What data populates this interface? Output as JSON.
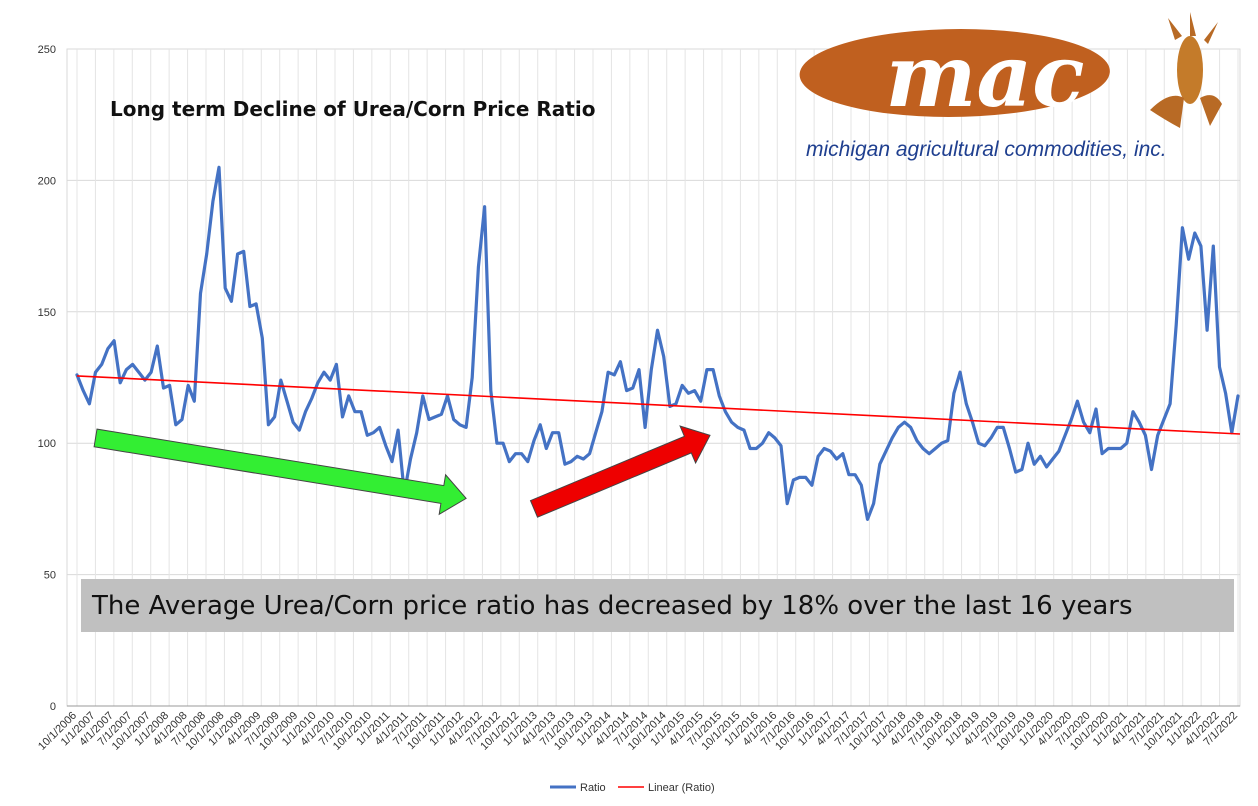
{
  "chart_data": {
    "type": "line",
    "title": "Long term Decline of Urea/Corn Price Ratio",
    "note": "The Average Urea/Corn price ratio has decreased by 18% over the last 16 years",
    "logo": {
      "word": "mac",
      "subtitle": "michigan agricultural commodities, inc."
    },
    "ylim": [
      0,
      250
    ],
    "yticks": [
      0,
      50,
      100,
      150,
      200,
      250
    ],
    "grid": true,
    "legend_position": "bottom",
    "legend": [
      "Ratio",
      "Linear (Ratio)"
    ],
    "x_tick_labels": [
      "10/1/2006",
      "1/1/2007",
      "4/1/2007",
      "7/1/2007",
      "10/1/2007",
      "1/1/2008",
      "4/1/2008",
      "7/1/2008",
      "10/1/2008",
      "1/1/2009",
      "4/1/2009",
      "7/1/2009",
      "10/1/2009",
      "1/1/2010",
      "4/1/2010",
      "7/1/2010",
      "10/1/2010",
      "1/1/2011",
      "4/1/2011",
      "7/1/2011",
      "10/1/2011",
      "1/1/2012",
      "4/1/2012",
      "7/1/2012",
      "10/1/2012",
      "1/1/2013",
      "4/1/2013",
      "7/1/2013",
      "10/1/2013",
      "1/1/2014",
      "4/1/2014",
      "7/1/2014",
      "10/1/2014",
      "1/1/2015",
      "4/1/2015",
      "7/1/2015",
      "10/1/2015",
      "1/1/2016",
      "4/1/2016",
      "7/1/2016",
      "10/1/2016",
      "1/1/2017",
      "4/1/2017",
      "7/1/2017",
      "10/1/2017",
      "1/1/2018",
      "4/1/2018",
      "7/1/2018",
      "10/1/2018",
      "1/1/2019",
      "4/1/2019",
      "7/1/2019",
      "10/1/2019",
      "1/1/2020",
      "4/1/2020",
      "7/1/2020",
      "10/1/2020",
      "1/1/2021",
      "4/1/2021",
      "7/1/2021",
      "10/1/2021",
      "1/1/2022",
      "4/1/2022",
      "7/1/2022"
    ],
    "series": [
      {
        "name": "Ratio",
        "color": "#4472C4",
        "values": [
          126,
          120,
          115,
          127,
          130,
          136,
          139,
          123,
          128,
          130,
          127,
          124,
          127,
          137,
          121,
          122,
          107,
          109,
          122,
          116,
          157,
          172,
          192,
          205,
          159,
          154,
          172,
          173,
          152,
          153,
          140,
          107,
          110,
          124,
          116,
          108,
          105,
          112,
          117,
          123,
          127,
          124,
          130,
          110,
          118,
          112,
          112,
          103,
          104,
          106,
          99,
          93,
          105,
          81,
          94,
          104,
          118,
          109,
          110,
          111,
          118,
          109,
          107,
          106,
          125,
          167,
          190,
          120,
          100,
          100,
          93,
          96,
          96,
          93,
          101,
          107,
          98,
          104,
          104,
          92,
          93,
          95,
          94,
          96,
          104,
          112,
          127,
          126,
          131,
          120,
          121,
          128,
          106,
          128,
          143,
          133,
          114,
          115,
          122,
          119,
          120,
          116,
          128,
          128,
          118,
          112,
          108,
          106,
          105,
          98,
          98,
          100,
          104,
          102,
          99,
          77,
          86,
          87,
          87,
          84,
          95,
          98,
          97,
          94,
          96,
          88,
          88,
          84,
          71,
          77,
          92,
          97,
          102,
          106,
          108,
          106,
          101,
          98,
          96,
          98,
          100,
          101,
          119,
          127,
          115,
          108,
          100,
          99,
          102,
          106,
          106,
          98,
          89,
          90,
          100,
          92,
          95,
          91,
          94,
          97,
          103,
          109,
          116,
          108,
          104,
          113,
          96,
          98,
          98,
          98,
          100,
          112,
          108,
          103,
          90,
          103,
          109,
          115,
          145,
          182,
          170,
          180,
          175,
          143,
          175,
          129,
          119,
          104,
          118
        ]
      },
      {
        "name": "Linear (Ratio)",
        "color": "#FF0000",
        "values": [
          125.6,
          103.5
        ]
      }
    ],
    "arrows": [
      {
        "label": "",
        "color": "#33ee33",
        "from": [
          3,
          102
        ],
        "to": [
          63,
          79
        ]
      },
      {
        "label": "",
        "color": "#ee0000",
        "from": [
          74,
          75
        ],
        "to": [
          102.5,
          103
        ]
      }
    ]
  }
}
